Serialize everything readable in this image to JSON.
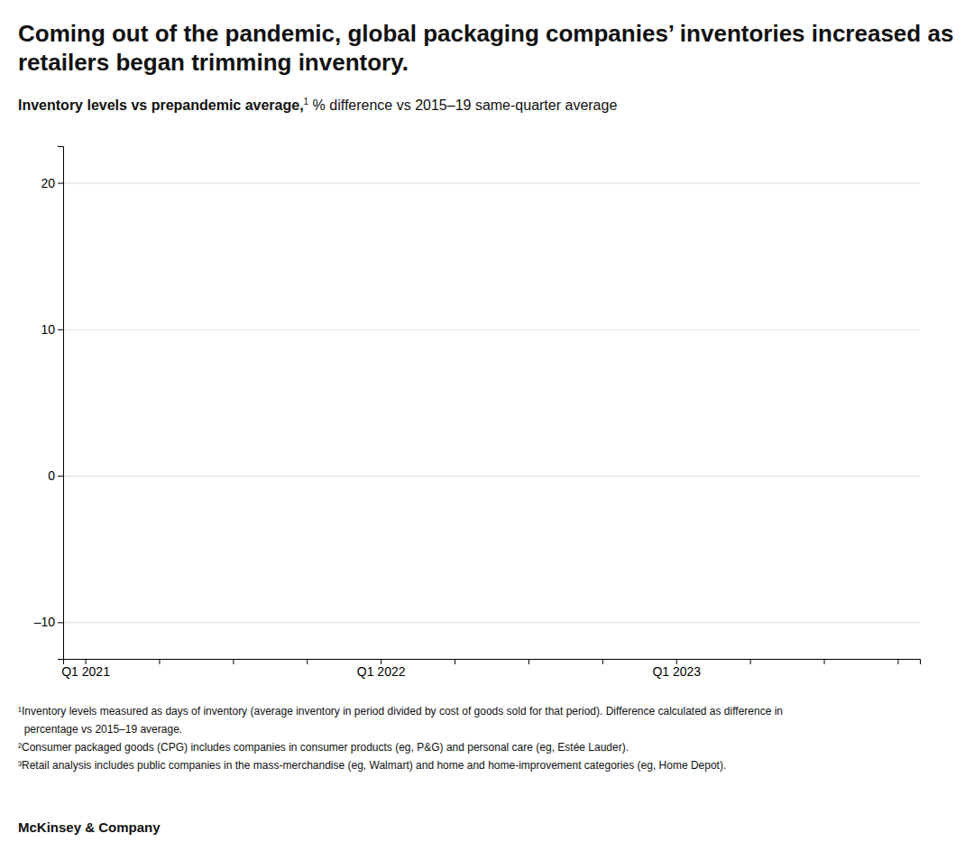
{
  "chart_data": {
    "type": "line",
    "title": "Coming out of the pandemic, global packaging companies’ inventories increased as retailers began trimming inventory.",
    "subtitle": [
      "Inventory levels vs prepandemic average,",
      "1",
      " % difference vs 2015–19 same-quarter average"
    ],
    "categories": [
      "Q1 2021",
      null,
      null,
      null,
      "Q1 2022",
      null,
      null,
      null,
      "Q1 2023",
      null,
      null,
      null
    ],
    "ylim": [
      -12.5,
      22.5
    ],
    "yticks": [
      {
        "value": -10,
        "label": "–10"
      },
      0,
      10,
      20
    ],
    "grid": true,
    "annotations": [
      "¹Inventory levels measured as days of inventory (average inventory in period divided by cost of goods sold for that period). Difference calculated as difference in",
      "  percentage vs 2015–19 average.",
      "²Consumer packaged goods (CPG) includes companies in consumer products (eg, P&G) and personal care (eg, Estée Lauder).",
      "³Retail analysis includes public companies in the mass-merchandise (eg, Walmart) and home and home-improvement categories (eg, Home Depot)."
    ],
    "source": "McKinsey & Company"
  }
}
